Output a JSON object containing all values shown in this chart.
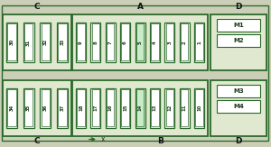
{
  "bg_color": "#cccfb8",
  "outer_bg": "#e0e8d0",
  "fuse_fill": "#ffffff",
  "fuse_fill_green": "#c8ecc8",
  "fuse_border": "#2a6a2a",
  "section_border": "#2a6a2a",
  "title_color": "#111111",
  "label_color": "#1a3a1a",
  "section_A_label": "A",
  "section_B_label": "B",
  "section_C_top_label": "C",
  "section_C_bot_label": "C",
  "section_D_top_label": "D",
  "section_D_bot_label": "D",
  "top_left_fuses": [
    "30",
    "31",
    "32",
    "33"
  ],
  "top_mid_fuses": [
    "9",
    "8",
    "7",
    "6",
    "5",
    "4",
    "3",
    "2",
    "1"
  ],
  "top_mid_highlight": [
    4
  ],
  "bot_left_fuses": [
    "34",
    "35",
    "36",
    "37"
  ],
  "bot_mid_fuses": [
    "18",
    "17",
    "16",
    "15",
    "14",
    "13",
    "12",
    "11",
    "10"
  ],
  "bot_mid_highlight": [
    4
  ],
  "relay_labels": [
    "M1",
    "M2",
    "M3",
    "M4"
  ],
  "arrow_label": "x"
}
